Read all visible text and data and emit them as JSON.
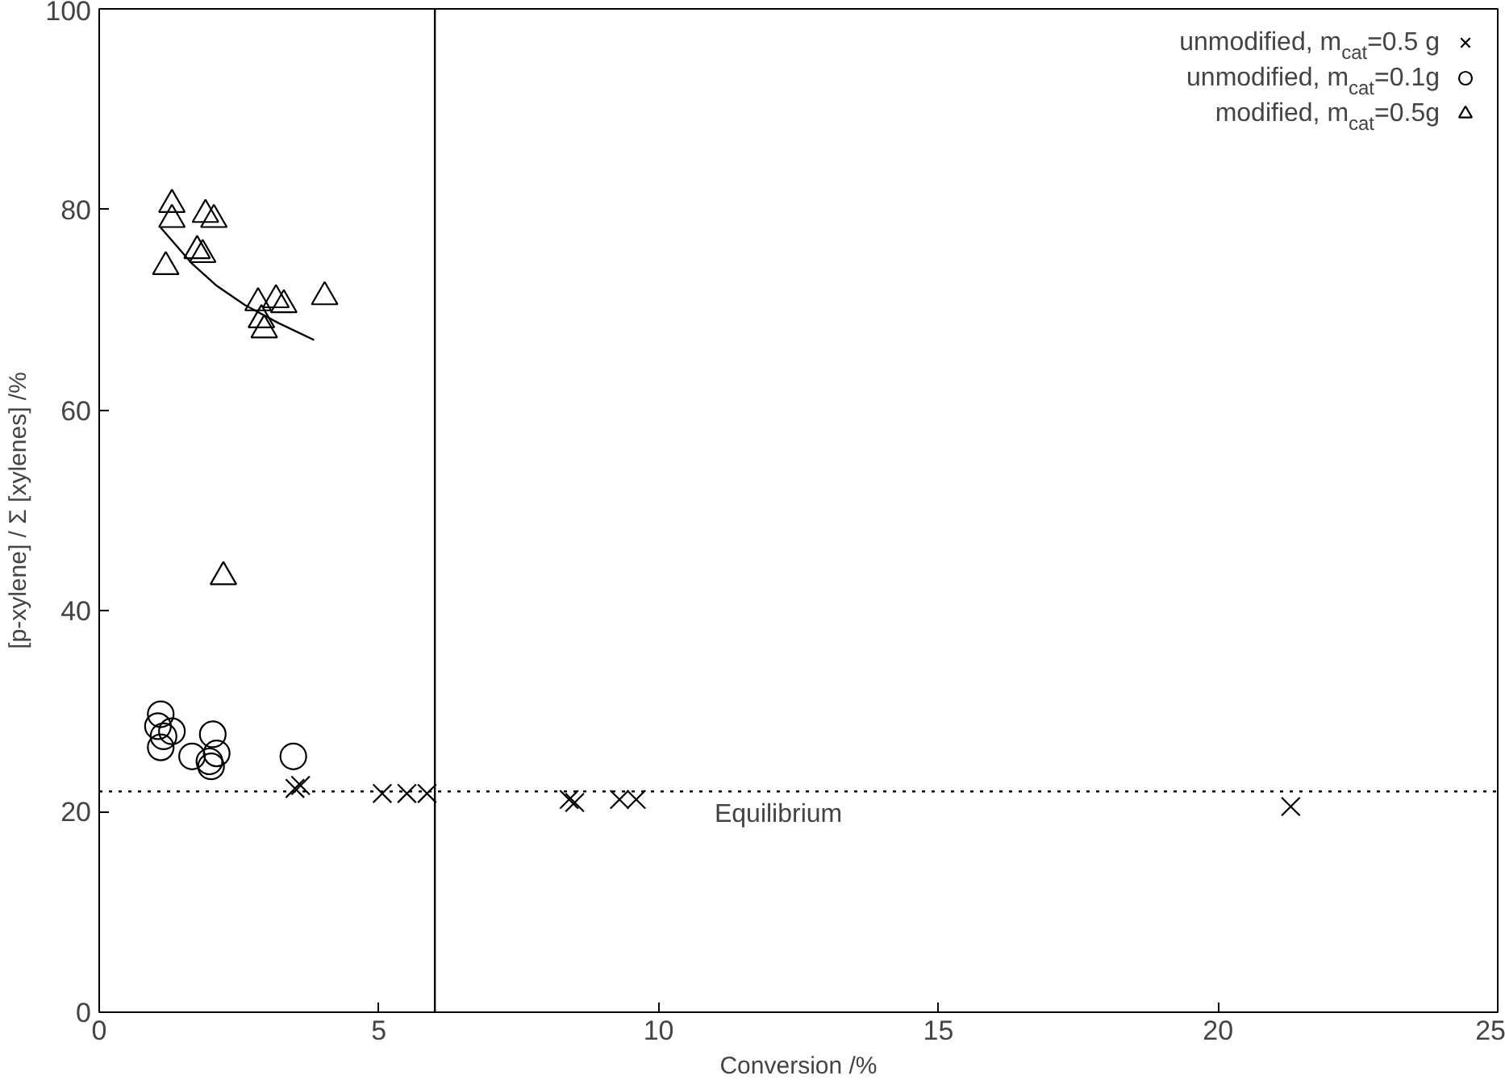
{
  "chart_data": {
    "type": "scatter",
    "xlabel": "Conversion /%",
    "ylabel": "[p-xylene] / Σ [xylenes] /%",
    "xlim": [
      0,
      25
    ],
    "ylim": [
      0,
      100
    ],
    "xticks": [
      0,
      5,
      10,
      15,
      20,
      25
    ],
    "yticks": [
      0,
      20,
      40,
      60,
      80,
      100
    ],
    "grid": false,
    "legend": "top right",
    "series": [
      {
        "name": "unmodified, m$_{cat}$=0.5 g",
        "color": "#000000",
        "marker": "cross",
        "x": [
          3.5,
          3.6,
          5.06,
          5.5,
          5.86,
          8.4,
          8.5,
          9.3,
          9.6,
          21.3
        ],
        "values": [
          22.3,
          22.6,
          21.8,
          21.8,
          21.8,
          21.2,
          20.9,
          21.2,
          21.2,
          20.5
        ]
      },
      {
        "name": "unmodified, m$_{cat}$=0.1g",
        "color": "#000000",
        "marker": "circle",
        "x": [
          1.05,
          1.1,
          1.15,
          1.1,
          1.3,
          1.66,
          1.97,
          2.03,
          2.1,
          2.0,
          3.47
        ],
        "values": [
          28.5,
          29.7,
          27.5,
          26.4,
          28.0,
          25.5,
          25.0,
          27.7,
          25.8,
          24.5,
          25.5
        ]
      },
      {
        "name": "modified, m$_{cat}$=0.5g",
        "color": "#000000",
        "marker": "triangle",
        "x": [
          1.3,
          1.3,
          1.19,
          1.75,
          1.85,
          1.9,
          2.05,
          2.84,
          2.9,
          2.95,
          3.16,
          3.3,
          4.03,
          2.22
        ],
        "values": [
          80.5,
          79.0,
          74.3,
          75.9,
          75.5,
          79.5,
          79.0,
          70.7,
          69.0,
          68.0,
          71.0,
          70.5,
          71.3,
          43.4
        ]
      },
      {
        "type": "line",
        "color": "#000000",
        "marker": "none",
        "x": [
          1.1,
          1.66,
          2.1,
          2.6,
          3.2,
          3.84
        ],
        "values": [
          78.2,
          74.6,
          72.4,
          70.5,
          68.7,
          67.0
        ]
      }
    ],
    "ref_lines": [
      {
        "axis": "y",
        "value": 22,
        "label": "Equilibrium",
        "line_style": "dotted",
        "color": "#000000"
      },
      {
        "axis": "x",
        "value": 6,
        "color": "#000000",
        "line_style": "solid"
      }
    ]
  }
}
